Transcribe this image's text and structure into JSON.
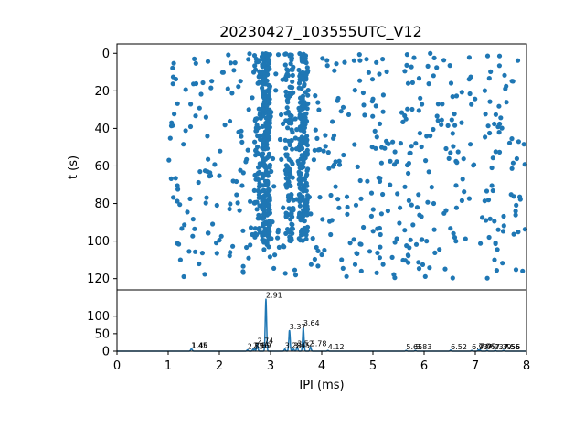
{
  "chart_data": {
    "title": "20230427_103555UTC_V12",
    "panels": [
      {
        "type": "scatter",
        "ylabel": "t (s)",
        "xlim": [
          0,
          8
        ],
        "ylim": [
          126,
          -5
        ],
        "y_inverted": true,
        "yticks": [
          0,
          20,
          40,
          60,
          80,
          100,
          120
        ],
        "color": "#1f77b4",
        "description_points": "dense scatter of IPI (ms) vs t (s); dense vertical bands near x≈2.91 and x≈3.64"
      },
      {
        "type": "line",
        "xlabel": "IPI (ms)",
        "xlim": [
          0,
          8
        ],
        "ylim": [
          0,
          175
        ],
        "xticks": [
          0,
          1,
          2,
          3,
          4,
          5,
          6,
          7,
          8
        ],
        "yticks": [
          0,
          50,
          100
        ],
        "color": "#1f77b4",
        "peaks": [
          {
            "x": 1.45,
            "label": "1.45",
            "y": 6
          },
          {
            "x": 1.46,
            "label": "1.46",
            "y": 6
          },
          {
            "x": 2.55,
            "label": "2.55",
            "y": 4
          },
          {
            "x": 2.66,
            "label": "2.66",
            "y": 6
          },
          {
            "x": 2.69,
            "label": "2.69",
            "y": 6
          },
          {
            "x": 2.74,
            "label": "2.74",
            "y": 20
          },
          {
            "x": 2.91,
            "label": "2.91",
            "y": 150
          },
          {
            "x": 3.28,
            "label": "3.28",
            "y": 6
          },
          {
            "x": 3.37,
            "label": "3.37",
            "y": 60
          },
          {
            "x": 3.45,
            "label": "3.45",
            "y": 6
          },
          {
            "x": 3.52,
            "label": "3.52",
            "y": 12
          },
          {
            "x": 3.64,
            "label": "3.64",
            "y": 70
          },
          {
            "x": 3.78,
            "label": "3.78",
            "y": 12
          },
          {
            "x": 4.12,
            "label": "4.12",
            "y": 2
          },
          {
            "x": 5.65,
            "label": "5.65",
            "y": 2
          },
          {
            "x": 5.83,
            "label": "5.83",
            "y": 2
          },
          {
            "x": 6.52,
            "label": "6.52",
            "y": 3
          },
          {
            "x": 6.93,
            "label": "6.93",
            "y": 2
          },
          {
            "x": 7.06,
            "label": "7.06",
            "y": 4
          },
          {
            "x": 7.09,
            "label": "7.09",
            "y": 4
          },
          {
            "x": 7.23,
            "label": "7.23",
            "y": 2
          },
          {
            "x": 7.39,
            "label": "7.39",
            "y": 2
          },
          {
            "x": 7.55,
            "label": "7.55",
            "y": 2
          },
          {
            "x": 7.56,
            "label": "7.56",
            "y": 2
          }
        ]
      }
    ]
  }
}
